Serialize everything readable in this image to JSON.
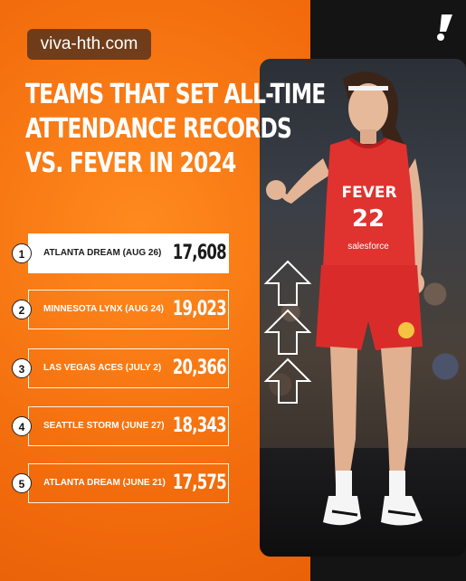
{
  "watermark": "viva-hth.com",
  "title_lines": [
    "TEAMS THAT SET ALL-TIME",
    "ATTENDANCE RECORDS",
    "VS. FEVER IN 2024"
  ],
  "records": [
    {
      "rank": "1",
      "label": "ATLANTA DREAM (AUG 26)",
      "value": "17,608",
      "highlighted": true
    },
    {
      "rank": "2",
      "label": "MINNESOTA LYNX (AUG 24)",
      "value": "19,023",
      "highlighted": false
    },
    {
      "rank": "3",
      "label": "LAS VEGAS ACES (JULY 2)",
      "value": "20,366",
      "highlighted": false
    },
    {
      "rank": "4",
      "label": "SEATTLE STORM (JUNE 27)",
      "value": "18,343",
      "highlighted": false
    },
    {
      "rank": "5",
      "label": "ATLANTA DREAM (JUNE 21)",
      "value": "17,575",
      "highlighted": false
    }
  ],
  "jersey": {
    "team": "FEVER",
    "number": "22",
    "sponsor": "salesforce"
  },
  "colors": {
    "orange": "#f26b0c",
    "dark": "#141414",
    "jersey_red": "#e0322f"
  },
  "icons": {
    "brand": "exclamation-logo-icon",
    "arrows": "up-arrow-icon"
  }
}
